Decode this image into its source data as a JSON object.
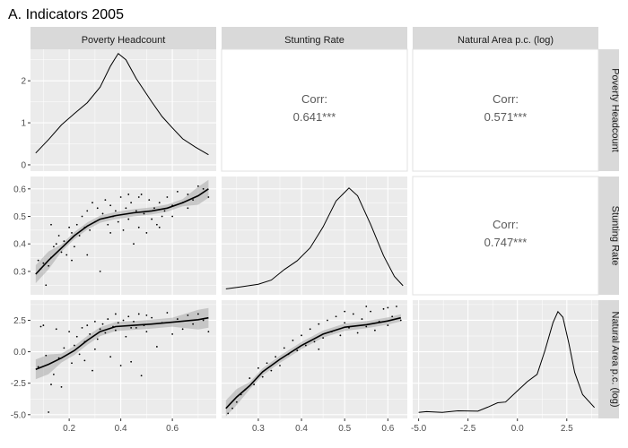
{
  "title": "A. Indicators 2005",
  "chart_data": {
    "type": "scatter",
    "title": "A. Indicators 2005",
    "variables": [
      "Poverty Headcount",
      "Stunting Rate",
      "Natural Area p.c. (log)"
    ],
    "correlations": [
      {
        "row": 0,
        "col": 1,
        "label": "Corr:",
        "value": "0.641***"
      },
      {
        "row": 0,
        "col": 2,
        "label": "Corr:",
        "value": "0.571***"
      },
      {
        "row": 1,
        "col": 2,
        "label": "Corr:",
        "value": "0.747***"
      }
    ],
    "axes": {
      "poverty": {
        "lim": [
          0.05,
          0.77
        ],
        "ticks": [
          0.2,
          0.4,
          0.6
        ],
        "tick_labels": [
          "0.2",
          "0.4",
          "0.6"
        ]
      },
      "stunting": {
        "lim": [
          0.215,
          0.645
        ],
        "ticks": [
          0.3,
          0.4,
          0.5,
          0.6
        ],
        "tick_labels": [
          "0.3",
          "0.4",
          "0.5",
          "0.6"
        ]
      },
      "natural": {
        "lim": [
          -5.3,
          4.1
        ],
        "ticks": [
          -5.0,
          -2.5,
          0.0,
          2.5
        ],
        "tick_labels": [
          "-5.0",
          "-2.5",
          "0.0",
          "2.5"
        ]
      },
      "density_poverty": {
        "lim": [
          -0.15,
          2.75
        ],
        "ticks": [
          0,
          1,
          2
        ],
        "tick_labels": [
          "0",
          "1",
          "2"
        ]
      }
    },
    "density_poverty": [
      [
        0.07,
        0.28
      ],
      [
        0.12,
        0.6
      ],
      [
        0.17,
        0.95
      ],
      [
        0.22,
        1.22
      ],
      [
        0.27,
        1.48
      ],
      [
        0.32,
        1.85
      ],
      [
        0.36,
        2.35
      ],
      [
        0.39,
        2.65
      ],
      [
        0.42,
        2.5
      ],
      [
        0.46,
        2.05
      ],
      [
        0.52,
        1.5
      ],
      [
        0.56,
        1.15
      ],
      [
        0.6,
        0.88
      ],
      [
        0.64,
        0.62
      ],
      [
        0.69,
        0.42
      ],
      [
        0.74,
        0.24
      ]
    ],
    "density_stunting": [
      [
        0.225,
        0.01
      ],
      [
        0.26,
        0.05
      ],
      [
        0.3,
        0.1
      ],
      [
        0.33,
        0.18
      ],
      [
        0.36,
        0.38
      ],
      [
        0.39,
        0.55
      ],
      [
        0.42,
        0.8
      ],
      [
        0.45,
        1.2
      ],
      [
        0.48,
        1.7
      ],
      [
        0.51,
        1.95
      ],
      [
        0.53,
        1.8
      ],
      [
        0.56,
        1.25
      ],
      [
        0.59,
        0.65
      ],
      [
        0.615,
        0.25
      ],
      [
        0.635,
        0.07
      ]
    ],
    "density_natural": [
      [
        -5.0,
        0.02
      ],
      [
        -4.6,
        0.04
      ],
      [
        -3.8,
        0.02
      ],
      [
        -3.0,
        0.06
      ],
      [
        -2.0,
        0.05
      ],
      [
        -1.5,
        0.16
      ],
      [
        -1.0,
        0.28
      ],
      [
        -0.6,
        0.3
      ],
      [
        0.0,
        0.6
      ],
      [
        0.5,
        0.85
      ],
      [
        1.0,
        1.05
      ],
      [
        1.4,
        1.7
      ],
      [
        1.8,
        2.45
      ],
      [
        2.05,
        2.75
      ],
      [
        2.3,
        2.6
      ],
      [
        2.6,
        1.9
      ],
      [
        2.9,
        1.1
      ],
      [
        3.3,
        0.5
      ],
      [
        3.9,
        0.15
      ]
    ],
    "smooth_stunting_vs_poverty": [
      [
        0.07,
        0.29
      ],
      [
        0.12,
        0.34
      ],
      [
        0.17,
        0.385
      ],
      [
        0.22,
        0.43
      ],
      [
        0.27,
        0.465
      ],
      [
        0.32,
        0.49
      ],
      [
        0.38,
        0.503
      ],
      [
        0.45,
        0.513
      ],
      [
        0.52,
        0.52
      ],
      [
        0.58,
        0.53
      ],
      [
        0.64,
        0.55
      ],
      [
        0.7,
        0.575
      ],
      [
        0.74,
        0.6
      ]
    ],
    "smooth_natural_vs_poverty": [
      [
        0.07,
        -1.4
      ],
      [
        0.12,
        -1.0
      ],
      [
        0.17,
        -0.5
      ],
      [
        0.22,
        0.1
      ],
      [
        0.27,
        0.9
      ],
      [
        0.32,
        1.6
      ],
      [
        0.38,
        2.0
      ],
      [
        0.45,
        2.1
      ],
      [
        0.52,
        2.2
      ],
      [
        0.6,
        2.35
      ],
      [
        0.7,
        2.55
      ],
      [
        0.74,
        2.7
      ]
    ],
    "smooth_natural_vs_stunting": [
      [
        0.225,
        -4.5
      ],
      [
        0.25,
        -3.6
      ],
      [
        0.28,
        -2.7
      ],
      [
        0.31,
        -1.6
      ],
      [
        0.35,
        -0.6
      ],
      [
        0.4,
        0.5
      ],
      [
        0.45,
        1.4
      ],
      [
        0.5,
        1.95
      ],
      [
        0.55,
        2.15
      ],
      [
        0.6,
        2.45
      ],
      [
        0.63,
        2.7
      ]
    ],
    "scatter_stunting_vs_poverty": [
      [
        0.08,
        0.34
      ],
      [
        0.09,
        0.31
      ],
      [
        0.1,
        0.33
      ],
      [
        0.11,
        0.25
      ],
      [
        0.12,
        0.32
      ],
      [
        0.13,
        0.35
      ],
      [
        0.14,
        0.39
      ],
      [
        0.15,
        0.4
      ],
      [
        0.16,
        0.43
      ],
      [
        0.17,
        0.37
      ],
      [
        0.18,
        0.41
      ],
      [
        0.19,
        0.36
      ],
      [
        0.2,
        0.46
      ],
      [
        0.21,
        0.44
      ],
      [
        0.22,
        0.39
      ],
      [
        0.23,
        0.47
      ],
      [
        0.24,
        0.43
      ],
      [
        0.25,
        0.5
      ],
      [
        0.26,
        0.46
      ],
      [
        0.27,
        0.52
      ],
      [
        0.28,
        0.45
      ],
      [
        0.29,
        0.55
      ],
      [
        0.3,
        0.48
      ],
      [
        0.31,
        0.53
      ],
      [
        0.32,
        0.3
      ],
      [
        0.33,
        0.51
      ],
      [
        0.34,
        0.56
      ],
      [
        0.35,
        0.47
      ],
      [
        0.36,
        0.54
      ],
      [
        0.37,
        0.5
      ],
      [
        0.38,
        0.52
      ],
      [
        0.39,
        0.48
      ],
      [
        0.4,
        0.57
      ],
      [
        0.41,
        0.45
      ],
      [
        0.42,
        0.53
      ],
      [
        0.43,
        0.49
      ],
      [
        0.44,
        0.55
      ],
      [
        0.45,
        0.4
      ],
      [
        0.46,
        0.52
      ],
      [
        0.47,
        0.46
      ],
      [
        0.48,
        0.58
      ],
      [
        0.49,
        0.51
      ],
      [
        0.5,
        0.44
      ],
      [
        0.51,
        0.56
      ],
      [
        0.52,
        0.49
      ],
      [
        0.53,
        0.53
      ],
      [
        0.54,
        0.47
      ],
      [
        0.55,
        0.55
      ],
      [
        0.56,
        0.5
      ],
      [
        0.57,
        0.52
      ],
      [
        0.58,
        0.57
      ],
      [
        0.6,
        0.54
      ],
      [
        0.62,
        0.59
      ],
      [
        0.64,
        0.55
      ],
      [
        0.66,
        0.58
      ],
      [
        0.68,
        0.56
      ],
      [
        0.7,
        0.61
      ],
      [
        0.72,
        0.6
      ],
      [
        0.74,
        0.57
      ],
      [
        0.13,
        0.47
      ],
      [
        0.21,
        0.34
      ],
      [
        0.27,
        0.36
      ],
      [
        0.36,
        0.44
      ],
      [
        0.43,
        0.58
      ],
      [
        0.47,
        0.57
      ],
      [
        0.55,
        0.46
      ],
      [
        0.6,
        0.5
      ],
      [
        0.66,
        0.53
      ]
    ],
    "scatter_natural_vs_poverty": [
      [
        0.08,
        -1.2
      ],
      [
        0.09,
        2.0
      ],
      [
        0.11,
        -0.3
      ],
      [
        0.12,
        -4.8
      ],
      [
        0.13,
        -2.6
      ],
      [
        0.14,
        -1.8
      ],
      [
        0.15,
        1.8
      ],
      [
        0.16,
        -0.5
      ],
      [
        0.17,
        -2.8
      ],
      [
        0.18,
        0.3
      ],
      [
        0.2,
        1.6
      ],
      [
        0.21,
        -0.9
      ],
      [
        0.22,
        0.5
      ],
      [
        0.23,
        1.2
      ],
      [
        0.24,
        -0.2
      ],
      [
        0.25,
        1.9
      ],
      [
        0.26,
        0.8
      ],
      [
        0.27,
        2.1
      ],
      [
        0.28,
        1.4
      ],
      [
        0.29,
        -1.5
      ],
      [
        0.3,
        2.4
      ],
      [
        0.31,
        1.0
      ],
      [
        0.32,
        1.8
      ],
      [
        0.33,
        2.2
      ],
      [
        0.34,
        1.5
      ],
      [
        0.35,
        2.6
      ],
      [
        0.36,
        -0.4
      ],
      [
        0.37,
        2.0
      ],
      [
        0.38,
        1.7
      ],
      [
        0.39,
        2.3
      ],
      [
        0.4,
        -1.1
      ],
      [
        0.41,
        2.5
      ],
      [
        0.42,
        1.2
      ],
      [
        0.43,
        2.8
      ],
      [
        0.44,
        -0.8
      ],
      [
        0.45,
        2.4
      ],
      [
        0.46,
        1.9
      ],
      [
        0.47,
        3.0
      ],
      [
        0.48,
        -1.9
      ],
      [
        0.49,
        2.1
      ],
      [
        0.5,
        1.6
      ],
      [
        0.52,
        2.7
      ],
      [
        0.54,
        0.4
      ],
      [
        0.56,
        2.3
      ],
      [
        0.58,
        3.1
      ],
      [
        0.6,
        1.4
      ],
      [
        0.62,
        2.6
      ],
      [
        0.64,
        1.8
      ],
      [
        0.66,
        2.9
      ],
      [
        0.68,
        2.2
      ],
      [
        0.7,
        3.0
      ],
      [
        0.72,
        2.5
      ],
      [
        0.74,
        1.6
      ],
      [
        0.1,
        2.1
      ],
      [
        0.26,
        -0.7
      ],
      [
        0.3,
        0.2
      ],
      [
        0.38,
        3.0
      ],
      [
        0.44,
        1.9
      ],
      [
        0.5,
        2.9
      ]
    ],
    "scatter_natural_vs_stunting": [
      [
        0.23,
        -4.9
      ],
      [
        0.24,
        -4.5
      ],
      [
        0.25,
        -4.0
      ],
      [
        0.26,
        -3.4
      ],
      [
        0.27,
        -3.0
      ],
      [
        0.28,
        -2.1
      ],
      [
        0.29,
        -2.6
      ],
      [
        0.3,
        -1.3
      ],
      [
        0.31,
        -2.0
      ],
      [
        0.32,
        -0.9
      ],
      [
        0.33,
        -1.5
      ],
      [
        0.34,
        -0.4
      ],
      [
        0.35,
        -1.1
      ],
      [
        0.36,
        0.3
      ],
      [
        0.37,
        -0.2
      ],
      [
        0.38,
        0.9
      ],
      [
        0.39,
        0.1
      ],
      [
        0.4,
        1.3
      ],
      [
        0.41,
        0.5
      ],
      [
        0.42,
        1.8
      ],
      [
        0.43,
        0.8
      ],
      [
        0.44,
        2.2
      ],
      [
        0.45,
        1.1
      ],
      [
        0.46,
        2.5
      ],
      [
        0.47,
        1.6
      ],
      [
        0.48,
        2.8
      ],
      [
        0.49,
        1.3
      ],
      [
        0.5,
        2.3
      ],
      [
        0.51,
        1.9
      ],
      [
        0.52,
        3.0
      ],
      [
        0.53,
        1.5
      ],
      [
        0.54,
        2.6
      ],
      [
        0.55,
        2.0
      ],
      [
        0.56,
        3.2
      ],
      [
        0.57,
        1.7
      ],
      [
        0.58,
        2.4
      ],
      [
        0.59,
        3.4
      ],
      [
        0.6,
        2.1
      ],
      [
        0.61,
        2.8
      ],
      [
        0.62,
        3.6
      ],
      [
        0.63,
        2.5
      ],
      [
        0.44,
        0.2
      ],
      [
        0.5,
        3.2
      ],
      [
        0.55,
        3.6
      ],
      [
        0.6,
        3.5
      ]
    ]
  }
}
